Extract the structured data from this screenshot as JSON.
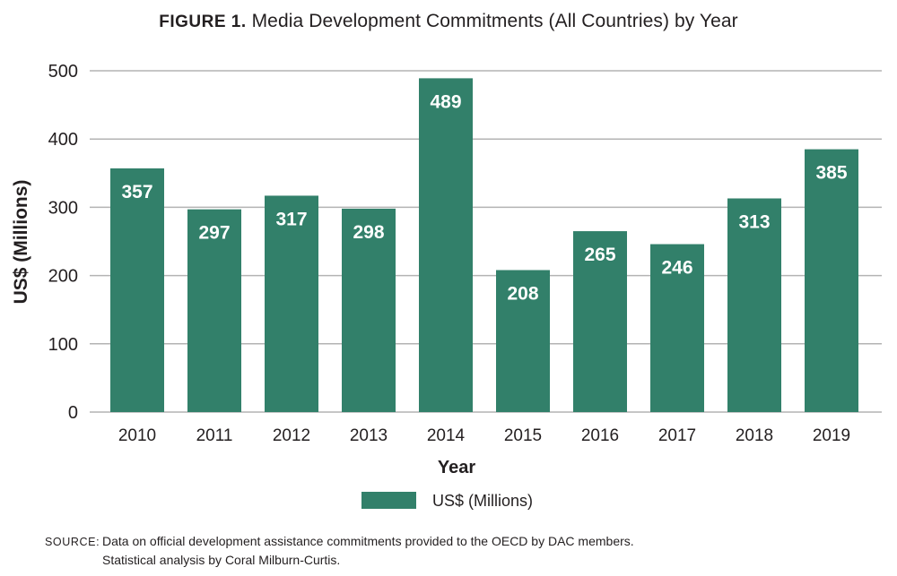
{
  "chart_data": {
    "type": "bar",
    "title_prefix": "FIGURE 1.",
    "title": "Media Development Commitments (All Countries) by Year",
    "categories": [
      "2010",
      "2011",
      "2012",
      "2013",
      "2014",
      "2015",
      "2016",
      "2017",
      "2018",
      "2019"
    ],
    "series": [
      {
        "name": "US$ (Millions)",
        "values": [
          357,
          297,
          317,
          298,
          489,
          208,
          265,
          246,
          313,
          385
        ],
        "color": "#32806a",
        "data_labels": [
          "357",
          "297",
          "317",
          "298",
          "489",
          "208",
          "265",
          "246",
          "313",
          "385"
        ],
        "data_label_color": "#ffffff"
      }
    ],
    "xlabel": "Year",
    "ylabel": "US$ (Millions)",
    "ylim": [
      0,
      500
    ],
    "yticks": [
      0,
      100,
      200,
      300,
      400,
      500
    ],
    "ytick_labels": [
      "0",
      "100",
      "200",
      "300",
      "400",
      "500"
    ],
    "grid": true,
    "grid_color": "#b3b3b3",
    "legend": {
      "placement": "bottom-center",
      "entries": [
        "US$ (Millions)"
      ]
    }
  },
  "source": {
    "label": "SOURCE:",
    "line1": "Data on official development assistance commitments provided to the OECD by DAC members.",
    "line2": "Statistical analysis by Coral Milburn-Curtis."
  }
}
